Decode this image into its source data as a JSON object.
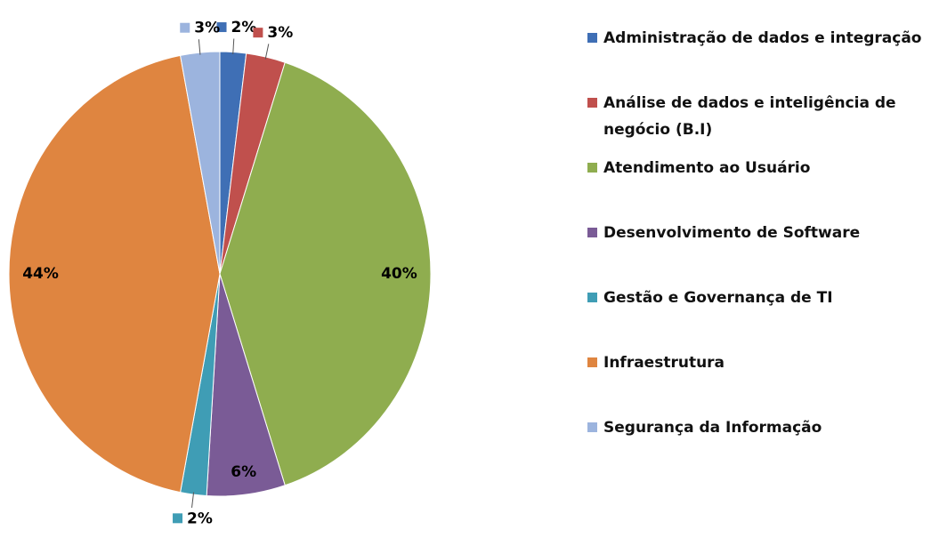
{
  "chart_data": {
    "type": "pie",
    "categories": [
      "Administração de dados e integração",
      "Análise de dados e inteligência de negócio (B.I)",
      "Atendimento ao Usuário",
      "Desenvolvimento de Software",
      "Gestão e Governança de TI",
      "Infraestrutura",
      "Segurança da Informação"
    ],
    "values": [
      2,
      3,
      40,
      6,
      2,
      44,
      3
    ],
    "value_labels": [
      "2%",
      "3%",
      "40%",
      "6%",
      "2%",
      "44%",
      "3%"
    ],
    "colors": [
      "#3f6fb5",
      "#c0504d",
      "#8fad4f",
      "#7a5b96",
      "#3f9db5",
      "#df8540",
      "#9cb4de"
    ],
    "legend": "right"
  }
}
